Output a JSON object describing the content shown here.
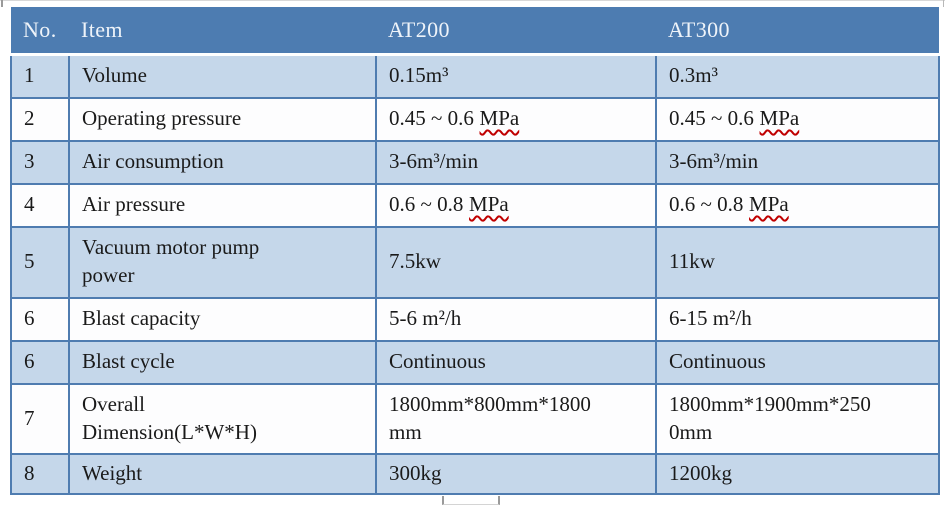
{
  "colors": {
    "header_bg": "#4d7cb1",
    "header_text": "#eef3f9",
    "row_shaded_blue": "#c5d7ea",
    "row_white": "#fdfdfe",
    "grid_border_blue": "#4f7cb0",
    "body_text": "#1a1a1a",
    "spellcheck_underline_red": "#c00000"
  },
  "table": {
    "headers": {
      "no": "No.",
      "item": "Item",
      "at200": "AT200",
      "at300": "AT300"
    },
    "rows": [
      {
        "no": "1",
        "item": "Volume",
        "at200": "0.15m³",
        "at300": "0.3m³"
      },
      {
        "no": "2",
        "item": "Operating pressure",
        "at200": "0.45 ~ 0.6",
        "at200_spell": "MPa",
        "at300": "0.45 ~ 0.6",
        "at300_spell": "MPa"
      },
      {
        "no": "3",
        "item": "Air consumption",
        "at200": "3-6m³/min",
        "at300": "3-6m³/min"
      },
      {
        "no": "4",
        "item": "Air pressure",
        "at200": "0.6 ~ 0.8",
        "at200_spell": "MPa",
        "at300": "0.6 ~ 0.8",
        "at300_spell": "MPa"
      },
      {
        "no": "5",
        "item": "Vacuum motor pump",
        "item2": "power",
        "at200": "7.5kw",
        "at300": "11kw"
      },
      {
        "no": "6",
        "item": "Blast capacity",
        "at200": "5-6 m²/h",
        "at300": "6-15 m²/h"
      },
      {
        "no": "6",
        "item": "Blast cycle",
        "at200": "Continuous",
        "at300": "Continuous"
      },
      {
        "no": "7",
        "item": "Overall",
        "item2": "Dimension(L*W*H)",
        "at200": "1800mm*800mm*1800",
        "at200_2": "mm",
        "at300": "1800mm*1900mm*250",
        "at300_2": "0mm"
      },
      {
        "no": "8",
        "item": "Weight",
        "at200": "300kg",
        "at300": "1200kg"
      }
    ]
  }
}
